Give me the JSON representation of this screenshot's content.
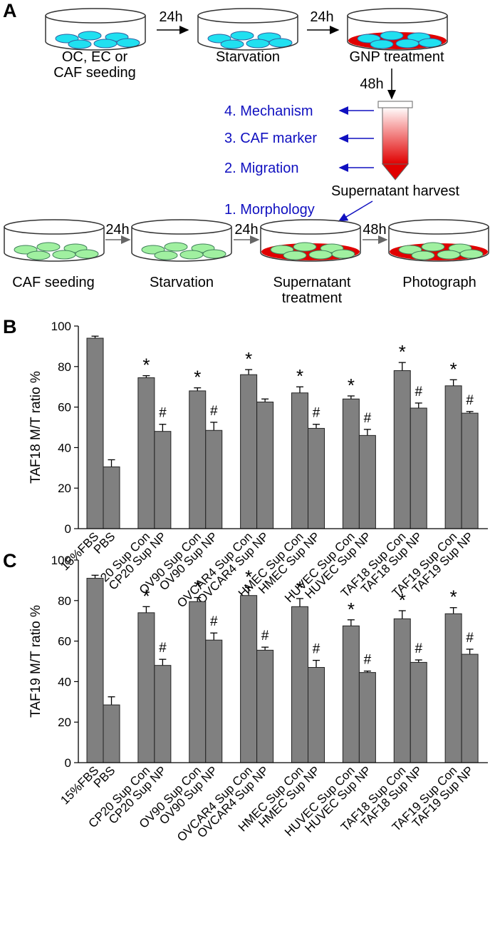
{
  "diagram": {
    "label": "A",
    "top_row": {
      "arrow1": "24h",
      "arrow2": "24h",
      "dish1": [
        "OC, EC or",
        "CAF seeding"
      ],
      "dish2": "Starvation",
      "dish3": "GNP treatment",
      "down_arrow": "48h"
    },
    "assays": [
      "4. Mechanism",
      "3. CAF marker",
      "2. Migration",
      "1. Morphology"
    ],
    "harvest": "Supernatant harvest",
    "bottom_row": {
      "arrow1": "24h",
      "arrow2": "24h",
      "arrow3": "48h",
      "dish1": "CAF seeding",
      "dish2": "Starvation",
      "dish3": [
        "Supernatant",
        "treatment"
      ],
      "dish4": "Photograph"
    }
  },
  "chart_data": [
    {
      "type": "bar",
      "panel_label": "B",
      "y_label": "TAF18 M/T ratio %",
      "color": "#808080",
      "categories": [
        "15%FBS",
        "PBS",
        "CP20 Sup Con",
        "CP20 Sup NP",
        "OV90 Sup Con",
        "OV90 Sup NP",
        "OVCAR4 Sup Con",
        "OVCAR4 Sup NP",
        "HMEC Sup Con",
        "HMEC Sup NP",
        "HUVEC Sup Con",
        "HUVEC Sup NP",
        "TAF18 Sup Con",
        "TAF18 Sup NP",
        "TAF19 Sup Con",
        "TAF19 Sup NP"
      ],
      "values": [
        94,
        30.5,
        74.5,
        48,
        68,
        48.5,
        76,
        62.5,
        67,
        49.5,
        64,
        46,
        78,
        59.5,
        70.5,
        57
      ],
      "errors": [
        1,
        3.5,
        1,
        3.5,
        1.5,
        4,
        2.5,
        1.5,
        3,
        2,
        1.5,
        3,
        4,
        2.5,
        3,
        0.8
      ],
      "annotations": [
        null,
        null,
        "*",
        "#",
        "*",
        "#",
        "*",
        null,
        "*",
        "#",
        "*",
        "#",
        "*",
        "#",
        "*",
        "#"
      ],
      "ylim": [
        0,
        100
      ],
      "yticks": [
        0,
        20,
        40,
        60,
        80,
        100
      ]
    },
    {
      "type": "bar",
      "panel_label": "C",
      "y_label": "TAF19 M/T ratio %",
      "color": "#808080",
      "categories": [
        "15%FBS",
        "PBS",
        "CP20 Sup Con",
        "CP20 Sup NP",
        "OV90 Sup Con",
        "OV90 Sup NP",
        "OVCAR4 Sup Con",
        "OVCAR4 Sup NP",
        "HMEC Sup Con",
        "HMEC Sup NP",
        "HUVEC Sup Con",
        "HUVEC Sup NP",
        "TAF18 Sup Con",
        "TAF18 Sup NP",
        "TAF19 Sup Con",
        "TAF19 Sup NP"
      ],
      "values": [
        91,
        28.5,
        74,
        48,
        79.5,
        60.5,
        82.5,
        55.5,
        77,
        47,
        67.5,
        44.5,
        71,
        49.5,
        73.5,
        53.5
      ],
      "errors": [
        1.5,
        4,
        3,
        3,
        2,
        3.5,
        4,
        1.5,
        4,
        3.5,
        3,
        0.7,
        4,
        1.2,
        3,
        2.5
      ],
      "annotations": [
        null,
        null,
        "*",
        "#",
        "*",
        "#",
        "*",
        "#",
        "*",
        "#",
        "*",
        "#",
        "*",
        "#",
        "*",
        "#"
      ],
      "ylim": [
        0,
        100
      ],
      "yticks": [
        0,
        20,
        40,
        60,
        80,
        100
      ]
    }
  ]
}
